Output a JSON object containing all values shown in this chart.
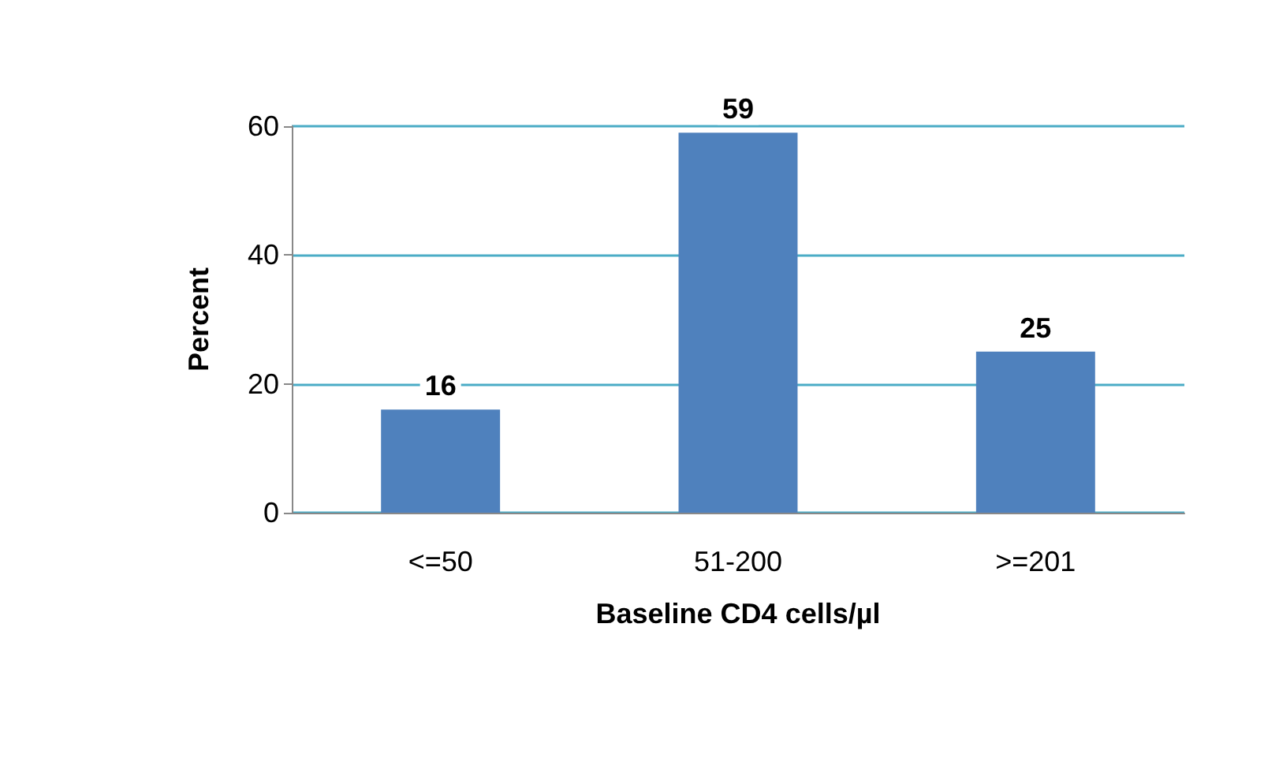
{
  "chart_data": {
    "type": "bar",
    "xlabel": "Baseline CD4 cells/µl",
    "ylabel": "Percent",
    "categories": [
      "<=50",
      "51-200",
      ">=201"
    ],
    "values": [
      16,
      59,
      25
    ],
    "color": "#4f81bd",
    "ylim": [
      0,
      60
    ],
    "yticks": [
      0,
      20,
      40,
      60
    ],
    "grid": "y",
    "data_labels": true
  }
}
